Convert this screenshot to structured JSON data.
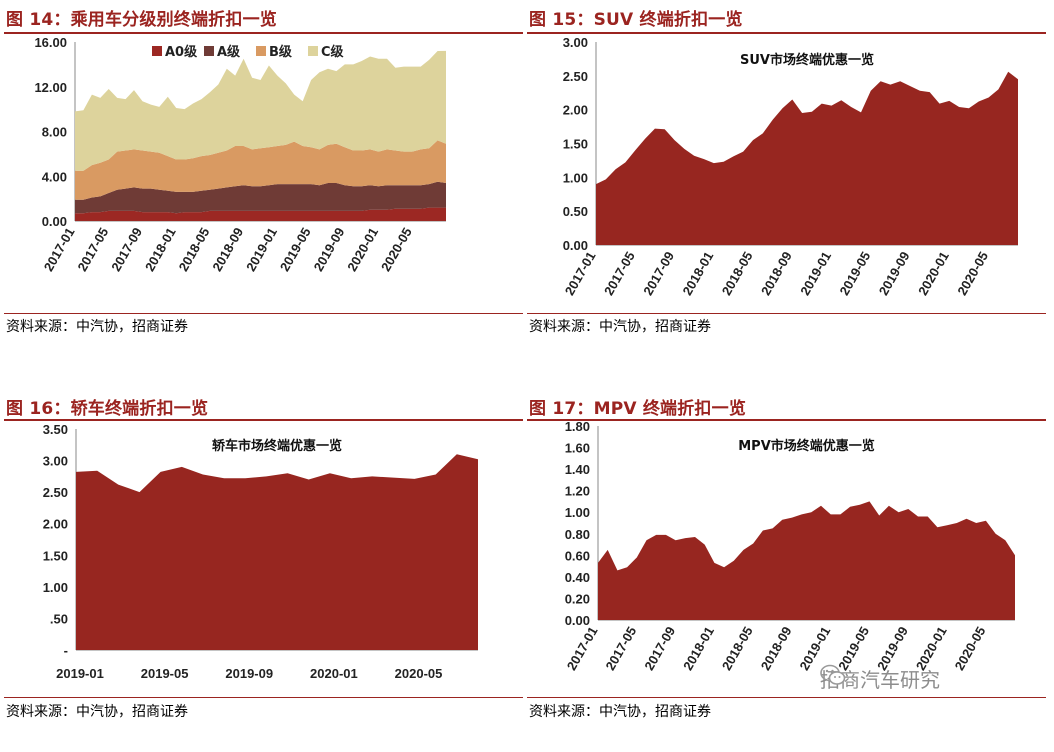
{
  "panels": [
    {
      "title": "图 14：乘用车分级别终端折扣一览",
      "source": "资料来源：中汽协，招商证券"
    },
    {
      "title": "图 15：SUV 终端折扣一览",
      "source": "资料来源：中汽协，招商证券"
    },
    {
      "title": "图 16：轿车终端折扣一览",
      "source": "资料来源：中汽协，招商证券"
    },
    {
      "title": "图 17：MPV 终端折扣一览",
      "source": "资料来源：中汽协，招商证券"
    }
  ],
  "watermark": "招商汽车研究",
  "colors": {
    "dark_red": "#972620",
    "a0": "#9c2823",
    "a": "#6f3b36",
    "b": "#d99a62",
    "c": "#ddd39c",
    "rule": "#9b2420"
  },
  "chart_data": [
    {
      "type": "area",
      "stacked": true,
      "title": "",
      "x_ticks": [
        "2017-01",
        "2017-05",
        "2017-09",
        "2018-01",
        "2018-05",
        "2018-09",
        "2019-01",
        "2019-05",
        "2019-09",
        "2020-01",
        "2020-05"
      ],
      "ylim": [
        0,
        16
      ],
      "y_ticks": [
        "0.00",
        "4.00",
        "8.00",
        "12.00",
        "16.00"
      ],
      "legend": "top",
      "series": [
        {
          "name": "A0级",
          "color": "#9c2823",
          "values": [
            0.7,
            0.7,
            0.8,
            0.8,
            0.9,
            0.9,
            0.9,
            0.9,
            0.8,
            0.8,
            0.8,
            0.8,
            0.7,
            0.8,
            0.8,
            0.8,
            0.9,
            0.9,
            0.9,
            0.9,
            0.9,
            0.9,
            0.9,
            0.9,
            0.9,
            0.9,
            0.9,
            0.9,
            0.9,
            0.9,
            0.9,
            0.9,
            0.9,
            0.9,
            0.9,
            1.0,
            1.0,
            1.0,
            1.1,
            1.1,
            1.1,
            1.1,
            1.2,
            1.2,
            1.2
          ]
        },
        {
          "name": "A级",
          "color": "#6f3b36",
          "values": [
            1.2,
            1.2,
            1.3,
            1.4,
            1.6,
            1.9,
            2.0,
            2.1,
            2.1,
            2.1,
            2.0,
            1.9,
            1.9,
            1.8,
            1.8,
            1.9,
            1.9,
            2.0,
            2.1,
            2.2,
            2.3,
            2.2,
            2.2,
            2.3,
            2.4,
            2.4,
            2.4,
            2.4,
            2.4,
            2.3,
            2.5,
            2.5,
            2.3,
            2.2,
            2.2,
            2.2,
            2.1,
            2.2,
            2.1,
            2.1,
            2.1,
            2.1,
            2.1,
            2.3,
            2.2
          ]
        },
        {
          "name": "B级",
          "color": "#d99a62",
          "values": [
            2.6,
            2.6,
            2.9,
            3.0,
            3.0,
            3.4,
            3.4,
            3.4,
            3.4,
            3.3,
            3.3,
            3.1,
            2.9,
            2.9,
            3.0,
            3.1,
            3.1,
            3.2,
            3.3,
            3.6,
            3.5,
            3.3,
            3.4,
            3.4,
            3.4,
            3.5,
            3.8,
            3.4,
            3.3,
            3.2,
            3.4,
            3.5,
            3.4,
            3.2,
            3.2,
            3.2,
            3.1,
            3.2,
            3.1,
            3.0,
            3.0,
            3.2,
            3.2,
            3.7,
            3.5
          ]
        },
        {
          "name": "C级",
          "color": "#ddd39c",
          "values": [
            5.3,
            5.4,
            6.3,
            5.8,
            6.3,
            4.8,
            4.6,
            5.3,
            4.4,
            4.2,
            4.1,
            5.3,
            4.6,
            4.5,
            4.9,
            5.1,
            5.6,
            6.1,
            7.3,
            6.3,
            7.8,
            6.4,
            6.1,
            7.3,
            6.3,
            5.5,
            4.2,
            4.0,
            6.0,
            6.9,
            6.8,
            6.5,
            7.4,
            7.7,
            8.0,
            8.3,
            8.3,
            8.1,
            7.4,
            7.6,
            7.6,
            7.4,
            7.9,
            8.0,
            8.3
          ]
        }
      ]
    },
    {
      "type": "area",
      "title": "SUV市场终端优惠一览",
      "x_ticks": [
        "2017-01",
        "2017-05",
        "2017-09",
        "2018-01",
        "2018-05",
        "2018-09",
        "2019-01",
        "2019-05",
        "2019-09",
        "2020-01",
        "2020-05"
      ],
      "ylim": [
        0,
        3
      ],
      "y_ticks": [
        "0.00",
        "0.50",
        "1.00",
        "1.50",
        "2.00",
        "2.50",
        "3.00"
      ],
      "series": [
        {
          "name": "",
          "color": "#972620",
          "values": [
            0.9,
            0.97,
            1.12,
            1.22,
            1.4,
            1.57,
            1.72,
            1.71,
            1.55,
            1.42,
            1.32,
            1.27,
            1.21,
            1.23,
            1.31,
            1.38,
            1.55,
            1.65,
            1.85,
            2.02,
            2.15,
            1.95,
            1.97,
            2.09,
            2.06,
            2.14,
            2.04,
            1.96,
            2.28,
            2.42,
            2.37,
            2.42,
            2.35,
            2.28,
            2.26,
            2.09,
            2.13,
            2.04,
            2.02,
            2.12,
            2.18,
            2.3,
            2.56,
            2.45
          ]
        }
      ]
    },
    {
      "type": "area",
      "title": "轿车市场终端优惠一览",
      "x_ticks": [
        "2019-01",
        "2019-05",
        "2019-09",
        "2020-01",
        "2020-05"
      ],
      "ylim": [
        0,
        3.5
      ],
      "y_ticks": [
        "-",
        ".50",
        "1.00",
        "1.50",
        "2.00",
        "2.50",
        "3.00",
        "3.50"
      ],
      "series": [
        {
          "name": "",
          "color": "#972620",
          "values": [
            2.82,
            2.84,
            2.62,
            2.5,
            2.82,
            2.9,
            2.78,
            2.72,
            2.72,
            2.75,
            2.8,
            2.7,
            2.8,
            2.72,
            2.75,
            2.73,
            2.71,
            2.78,
            3.1,
            3.02
          ]
        }
      ]
    },
    {
      "type": "area",
      "title": "MPV市场终端优惠一览",
      "x_ticks": [
        "2017-01",
        "2017-05",
        "2017-09",
        "2018-01",
        "2018-05",
        "2018-09",
        "2019-01",
        "2019-05",
        "2019-09",
        "2020-01",
        "2020-05"
      ],
      "ylim": [
        0,
        1.8
      ],
      "y_ticks": [
        "0.00",
        "0.20",
        "0.40",
        "0.60",
        "0.80",
        "1.00",
        "1.20",
        "1.40",
        "1.60",
        "1.80"
      ],
      "series": [
        {
          "name": "",
          "color": "#972620",
          "values": [
            0.53,
            0.65,
            0.46,
            0.49,
            0.58,
            0.74,
            0.79,
            0.79,
            0.74,
            0.76,
            0.77,
            0.7,
            0.53,
            0.49,
            0.55,
            0.65,
            0.71,
            0.83,
            0.85,
            0.93,
            0.95,
            0.98,
            1.0,
            1.06,
            0.98,
            0.98,
            1.05,
            1.07,
            1.1,
            0.97,
            1.06,
            1.0,
            1.03,
            0.96,
            0.96,
            0.86,
            0.88,
            0.9,
            0.94,
            0.9,
            0.92,
            0.8,
            0.74,
            0.6
          ]
        }
      ]
    }
  ]
}
